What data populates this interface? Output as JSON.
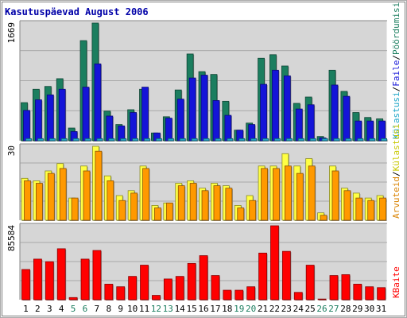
{
  "chart_data": {
    "type": "bar",
    "title": "Kasutuspäevad August 2006",
    "categories": [
      "1",
      "2",
      "3",
      "4",
      "5",
      "6",
      "7",
      "8",
      "9",
      "10",
      "11",
      "12",
      "13",
      "14",
      "15",
      "16",
      "17",
      "18",
      "19",
      "20",
      "21",
      "22",
      "23",
      "24",
      "25",
      "26",
      "27",
      "28",
      "29",
      "30",
      "31"
    ],
    "weekend_days": [
      "5",
      "6",
      "12",
      "13",
      "19",
      "20",
      "26",
      "27"
    ],
    "panels": [
      {
        "name": "requests",
        "ymax_label": "1669",
        "ymax": 1669,
        "legend": {
          "part1": "Pöördumisi",
          "sep1": "/",
          "part2": "Faile",
          "sep2": "/",
          "part3": "Külastusi"
        },
        "series": [
          {
            "name": "Pöördumisi",
            "color": "#1b7e5f",
            "values": [
              540,
              730,
              770,
              880,
              180,
              1420,
              1669,
              420,
              230,
              440,
              730,
              110,
              340,
              720,
              1230,
              980,
              940,
              560,
              150,
              250,
              1170,
              1220,
              1060,
              530,
              620,
              60,
              1000,
              700,
              400,
              330,
              310
            ]
          },
          {
            "name": "Faile",
            "color": "#1414d8",
            "values": [
              430,
              580,
              650,
              730,
              130,
              760,
              1090,
              350,
              210,
              400,
              760,
              110,
              320,
              590,
              890,
              930,
              570,
              360,
              150,
              230,
              800,
              1000,
              920,
              450,
              510,
              40,
              790,
              630,
              280,
              280,
              280
            ]
          },
          {
            "name": "Külastusi",
            "color": "#1ea6c8",
            "values": [
              30,
              30,
              30,
              30,
              30,
              30,
              30,
              30,
              30,
              30,
              30,
              30,
              30,
              30,
              30,
              30,
              30,
              30,
              30,
              30,
              30,
              30,
              30,
              30,
              30,
              30,
              30,
              30,
              30,
              30,
              30
            ]
          }
        ]
      },
      {
        "name": "visits",
        "ymax_label": "30",
        "ymax": 30,
        "legend": {
          "part1": "Külastusi",
          "sep1": "/",
          "part2": "Arvuteid"
        },
        "series": [
          {
            "name": "Külastusi",
            "color": "#ffff44",
            "values": [
              17,
              16,
              20,
              23,
              9,
              22,
              30,
              18,
              10,
              12,
              22,
              6,
              7,
              15,
              16,
              13,
              15,
              14,
              6,
              10,
              22,
              22,
              27,
              22,
              25,
              3,
              22,
              13,
              11,
              9,
              10
            ]
          },
          {
            "name": "Arvuteid",
            "color": "#ff9900",
            "values": [
              16,
              15,
              19,
              21,
              9,
              20,
              28,
              16,
              8,
              11,
              21,
              5,
              7,
              14,
              15,
              12,
              14,
              13,
              5,
              8,
              21,
              21,
              22,
              19,
              22,
              2,
              20,
              12,
              9,
              8,
              9
            ]
          }
        ]
      },
      {
        "name": "kbytes",
        "ymax_label": "85584",
        "ymax": 85584,
        "legend": {
          "part1": "KBaite"
        },
        "series": [
          {
            "name": "KBaite",
            "color": "#ff0000",
            "values": [
              35000,
              47000,
              44000,
              59000,
              2500,
              47000,
              57000,
              18000,
              15000,
              27000,
              40000,
              5000,
              24000,
              27000,
              42000,
              51000,
              28000,
              11000,
              11000,
              15000,
              54000,
              85584,
              56000,
              8500,
              40000,
              800,
              28000,
              29000,
              18000,
              15000,
              14000
            ]
          }
        ]
      }
    ]
  }
}
